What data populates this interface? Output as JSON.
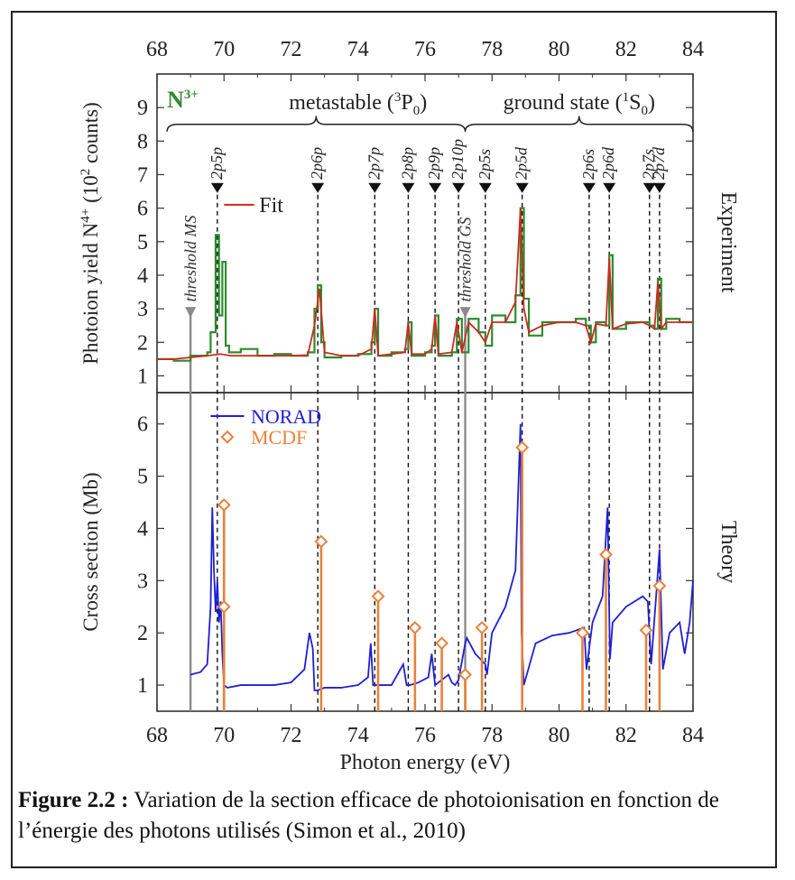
{
  "chart_data": [
    {
      "type": "line",
      "panel": "top",
      "side_label": "Experiment",
      "ylabel": "Photoion yield N4+ (10² counts)",
      "ylabel_parts": {
        "main": "Photoion yield  N",
        "sup": "4+",
        "rest": " (10",
        "sup2": "2",
        "end": " counts)"
      },
      "xlim": [
        68,
        84
      ],
      "ylim": [
        0.5,
        10
      ],
      "x_ticks": [
        "68",
        "70",
        "72",
        "74",
        "76",
        "78",
        "80",
        "82",
        "84"
      ],
      "y_ticks": [
        "1",
        "2",
        "3",
        "4",
        "5",
        "6",
        "7",
        "8",
        "9"
      ],
      "ion_label": {
        "main": "N",
        "sup": "3+"
      },
      "region_metastable": {
        "text": "metastable (",
        "sup": "3",
        "term": "P",
        "sub": "0",
        "end": ")",
        "x_range": [
          68.3,
          77.2
        ]
      },
      "region_ground": {
        "text": "ground state (",
        "sup": "1",
        "term": "S",
        "sub": "0",
        "end": ")",
        "x_range": [
          77.2,
          84
        ]
      },
      "fit_legend": "Fit",
      "thresholds": [
        {
          "label": "threshold MS",
          "x": 69.0
        },
        {
          "label": "threshold GS",
          "x": 77.2
        }
      ],
      "resonance_markers": [
        {
          "label": "2p5p",
          "x": 69.8
        },
        {
          "label": "2p6p",
          "x": 72.8
        },
        {
          "label": "2p7p",
          "x": 74.5
        },
        {
          "label": "2p8p",
          "x": 75.5
        },
        {
          "label": "2p9p",
          "x": 76.3
        },
        {
          "label": "2p10p",
          "x": 77.0
        },
        {
          "label": "2p5s",
          "x": 77.8
        },
        {
          "label": "2p5d",
          "x": 78.9
        },
        {
          "label": "2p6s",
          "x": 80.9
        },
        {
          "label": "2p6d",
          "x": 81.5
        },
        {
          "label": "2p7s",
          "x": 82.7
        },
        {
          "label": "2p7d",
          "x": 83.0
        }
      ],
      "series": [
        {
          "name": "Experiment",
          "color": "#2e8b2e",
          "style": "histogram",
          "x": [
            68.0,
            68.5,
            69.0,
            69.5,
            69.6,
            69.75,
            69.85,
            69.95,
            70.05,
            70.15,
            70.5,
            71.0,
            71.5,
            72.0,
            72.5,
            72.7,
            72.8,
            72.9,
            73.0,
            73.5,
            74.0,
            74.4,
            74.5,
            74.6,
            75.0,
            75.4,
            75.5,
            75.6,
            76.0,
            76.2,
            76.3,
            76.4,
            76.8,
            76.95,
            77.1,
            77.3,
            77.6,
            77.8,
            78.0,
            78.4,
            78.7,
            78.85,
            78.95,
            79.1,
            79.5,
            80.0,
            80.5,
            80.8,
            80.95,
            81.1,
            81.4,
            81.5,
            81.6,
            82.0,
            82.5,
            82.7,
            82.85,
            82.95,
            83.05,
            83.2,
            83.6,
            84.0
          ],
          "y": [
            1.5,
            1.45,
            1.6,
            1.7,
            2.3,
            5.2,
            2.8,
            4.4,
            1.9,
            1.7,
            1.8,
            1.6,
            1.65,
            1.6,
            1.7,
            3.0,
            3.7,
            2.0,
            1.55,
            1.6,
            1.65,
            2.0,
            3.0,
            1.6,
            1.7,
            1.8,
            2.6,
            1.6,
            1.7,
            1.9,
            2.8,
            1.6,
            1.7,
            2.7,
            1.7,
            2.7,
            2.3,
            1.9,
            2.8,
            2.6,
            3.4,
            6.0,
            3.3,
            2.2,
            2.6,
            2.6,
            2.7,
            2.5,
            2.0,
            2.6,
            2.5,
            4.6,
            2.4,
            2.6,
            2.6,
            2.5,
            2.4,
            3.9,
            2.4,
            2.7,
            2.6,
            2.5
          ]
        },
        {
          "name": "Fit",
          "color": "#cc2a1f",
          "style": "line",
          "x": [
            68.0,
            68.5,
            69.0,
            69.5,
            69.9,
            70.2,
            70.5,
            71.0,
            71.5,
            72.0,
            72.5,
            72.7,
            72.85,
            73.0,
            73.5,
            74.0,
            74.4,
            74.5,
            74.6,
            75.0,
            75.4,
            75.5,
            75.6,
            76.0,
            76.2,
            76.3,
            76.4,
            76.8,
            76.95,
            77.1,
            77.3,
            77.6,
            77.8,
            78.0,
            78.4,
            78.7,
            78.85,
            78.95,
            79.1,
            79.5,
            80.0,
            80.5,
            80.8,
            80.95,
            81.1,
            81.4,
            81.5,
            81.6,
            82.0,
            82.5,
            82.7,
            82.85,
            82.95,
            83.05,
            83.2,
            83.6,
            84.0
          ],
          "y": [
            1.5,
            1.5,
            1.55,
            1.6,
            1.65,
            1.6,
            1.6,
            1.6,
            1.6,
            1.6,
            1.62,
            2.5,
            3.6,
            1.7,
            1.6,
            1.6,
            1.8,
            3.0,
            1.6,
            1.65,
            1.7,
            2.6,
            1.65,
            1.65,
            1.8,
            2.8,
            1.65,
            1.7,
            2.6,
            1.7,
            2.6,
            2.3,
            2.0,
            2.6,
            2.6,
            3.2,
            6.0,
            3.0,
            2.3,
            2.5,
            2.6,
            2.6,
            2.5,
            2.0,
            2.55,
            2.5,
            4.5,
            2.4,
            2.55,
            2.6,
            2.5,
            2.4,
            3.8,
            2.4,
            2.6,
            2.6,
            2.6
          ]
        }
      ]
    },
    {
      "type": "line",
      "panel": "bottom",
      "side_label": "Theory",
      "xlabel": "Photon energy (eV)",
      "ylabel": "Cross section (Mb)",
      "xlim": [
        68,
        84
      ],
      "ylim": [
        0.5,
        6.6
      ],
      "x_ticks": [
        "68",
        "70",
        "72",
        "74",
        "76",
        "78",
        "80",
        "82",
        "84"
      ],
      "y_ticks": [
        "1",
        "2",
        "3",
        "4",
        "5",
        "6"
      ],
      "series": [
        {
          "name": "NORAD",
          "color": "#1f1fd6",
          "style": "line",
          "x": [
            69.0,
            69.3,
            69.5,
            69.6,
            69.65,
            69.7,
            69.75,
            69.8,
            69.85,
            69.9,
            69.95,
            70.0,
            70.1,
            70.5,
            71.0,
            71.5,
            72.0,
            72.4,
            72.55,
            72.65,
            72.7,
            72.8,
            73.0,
            73.5,
            74.0,
            74.3,
            74.38,
            74.45,
            74.6,
            75.0,
            75.35,
            75.45,
            75.55,
            75.8,
            76.1,
            76.2,
            76.3,
            76.5,
            76.7,
            76.8,
            76.9,
            77.0,
            77.2,
            77.25,
            77.5,
            77.8,
            77.85,
            78.0,
            78.4,
            78.7,
            78.85,
            78.88,
            78.95,
            79.3,
            79.8,
            80.3,
            80.75,
            80.82,
            81.0,
            81.3,
            81.45,
            81.52,
            81.6,
            82.0,
            82.5,
            82.65,
            82.75,
            83.0,
            83.1,
            83.3,
            83.6,
            83.75,
            83.9,
            84.0
          ],
          "y": [
            1.2,
            1.25,
            1.4,
            2.5,
            4.4,
            3.2,
            2.4,
            3.0,
            2.2,
            2.6,
            1.6,
            1.0,
            0.95,
            1.0,
            1.0,
            1.0,
            1.05,
            1.3,
            2.0,
            1.7,
            0.9,
            0.9,
            0.95,
            0.95,
            1.0,
            1.15,
            1.8,
            1.0,
            1.0,
            1.0,
            1.4,
            1.0,
            1.0,
            1.05,
            1.15,
            1.6,
            1.0,
            1.1,
            1.2,
            1.05,
            1.0,
            1.1,
            1.8,
            1.9,
            1.6,
            1.4,
            1.2,
            2.0,
            2.5,
            3.2,
            6.0,
            2.0,
            1.0,
            1.8,
            1.95,
            2.0,
            2.1,
            1.3,
            2.2,
            2.7,
            4.4,
            1.5,
            2.2,
            2.5,
            2.7,
            2.6,
            1.4,
            3.6,
            1.3,
            2.0,
            2.2,
            1.6,
            2.2,
            3.0
          ]
        },
        {
          "name": "MCDF",
          "color": "#e8823a",
          "style": "sticks",
          "x": [
            70.0,
            70.0,
            72.9,
            74.6,
            75.7,
            76.5,
            77.2,
            77.7,
            78.9,
            80.7,
            81.4,
            82.6,
            83.0
          ],
          "y": [
            4.45,
            2.5,
            3.75,
            2.7,
            2.1,
            1.8,
            1.2,
            2.1,
            5.55,
            2.0,
            3.5,
            2.05,
            2.9
          ]
        }
      ]
    }
  ],
  "caption": {
    "label": "Figure 2.2 :",
    "text": " Variation de la section efficace de photoionisation en fonction de l’énergie des photons utilisés (Simon et al., 2010)"
  }
}
